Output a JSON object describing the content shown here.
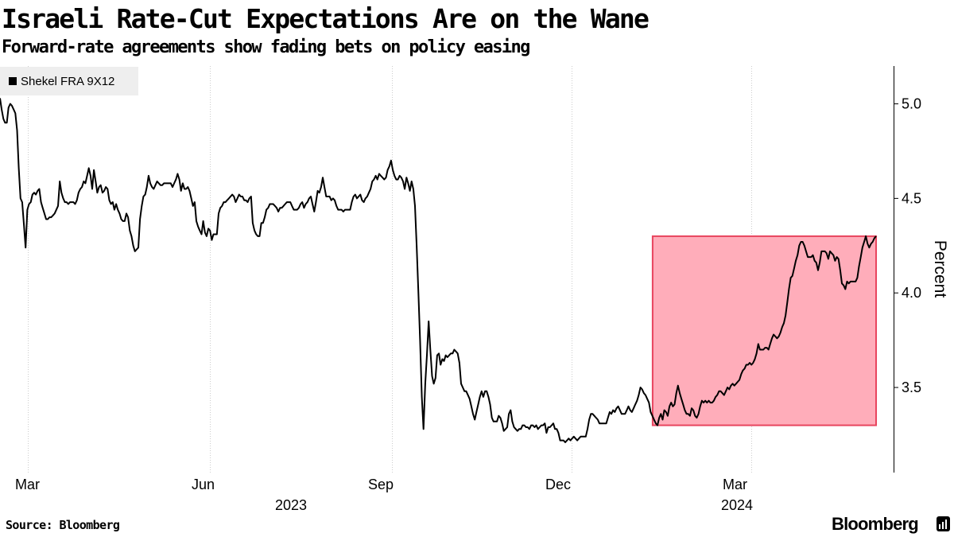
{
  "header": {
    "title": "Israeli Rate-Cut Expectations Are on the Wane",
    "subtitle": "Forward-rate agreements show fading bets on policy easing"
  },
  "footer": {
    "source": "Source: Bloomberg",
    "brand": "Bloomberg"
  },
  "colors": {
    "line": "#000000",
    "highlight_fill": "#ffadba",
    "highlight_stroke": "#e8455e",
    "grid": "#cccccc"
  },
  "chart_data": {
    "type": "line",
    "title": "Israeli Rate-Cut Expectations Are on the Wane",
    "subtitle": "Forward-rate agreements show fading bets on policy easing",
    "xlabel": "",
    "ylabel": "Percent",
    "ylim": [
      3.05,
      5.2
    ],
    "yticks": [
      "3.5",
      "4.0",
      "4.5",
      "5.0"
    ],
    "xtick_labels": [
      "Mar",
      "Jun",
      "Sep",
      "Dec",
      "Mar"
    ],
    "year_labels": [
      "2023",
      "2024"
    ],
    "legend": "top-left",
    "grid": "vertical dotted",
    "highlight": {
      "x_start": "2024-01-11",
      "x_end": "2024-05-03",
      "y_range": [
        3.3,
        4.3
      ]
    },
    "series": [
      {
        "name": "Shekel FRA 9X12",
        "x_start": "2023-02-15",
        "x_end": "2024-05-03",
        "values": [
          5.03,
          4.97,
          4.92,
          4.9,
          4.9,
          4.98,
          5.0,
          4.99,
          4.97,
          4.95,
          4.86,
          4.66,
          4.5,
          4.48,
          4.36,
          4.24,
          4.44,
          4.47,
          4.48,
          4.52,
          4.53,
          4.52,
          4.54,
          4.55,
          4.48,
          4.45,
          4.42,
          4.39,
          4.39,
          4.4,
          4.4,
          4.41,
          4.42,
          4.44,
          4.46,
          4.59,
          4.53,
          4.5,
          4.48,
          4.48,
          4.47,
          4.48,
          4.48,
          4.48,
          4.47,
          4.49,
          4.53,
          4.55,
          4.56,
          4.59,
          4.58,
          4.62,
          4.66,
          4.62,
          4.55,
          4.65,
          4.59,
          4.53,
          4.56,
          4.57,
          4.53,
          4.54,
          4.56,
          4.55,
          4.49,
          4.47,
          4.48,
          4.44,
          4.47,
          4.44,
          4.42,
          4.39,
          4.38,
          4.38,
          4.42,
          4.4,
          4.33,
          4.3,
          4.25,
          4.22,
          4.23,
          4.24,
          4.39,
          4.46,
          4.51,
          4.52,
          4.56,
          4.62,
          4.58,
          4.56,
          4.55,
          4.57,
          4.59,
          4.58,
          4.57,
          4.57,
          4.58,
          4.58,
          4.58,
          4.58,
          4.58,
          4.56,
          4.58,
          4.6,
          4.63,
          4.6,
          4.54,
          4.58,
          4.55,
          4.55,
          4.56,
          4.54,
          4.5,
          4.46,
          4.48,
          4.38,
          4.35,
          4.33,
          4.31,
          4.38,
          4.32,
          4.3,
          4.34,
          4.33,
          4.28,
          4.31,
          4.31,
          4.31,
          4.42,
          4.45,
          4.46,
          4.48,
          4.48,
          4.49,
          4.5,
          4.51,
          4.52,
          4.51,
          4.48,
          4.5,
          4.52,
          4.51,
          4.51,
          4.49,
          4.49,
          4.48,
          4.5,
          4.51,
          4.37,
          4.33,
          4.31,
          4.3,
          4.3,
          4.37,
          4.37,
          4.4,
          4.44,
          4.45,
          4.47,
          4.47,
          4.47,
          4.46,
          4.45,
          4.43,
          4.45,
          4.45,
          4.46,
          4.47,
          4.48,
          4.48,
          4.48,
          4.46,
          4.44,
          4.44,
          4.44,
          4.45,
          4.47,
          4.48,
          4.45,
          4.47,
          4.48,
          4.5,
          4.51,
          4.47,
          4.43,
          4.48,
          4.54,
          4.53,
          4.56,
          4.61,
          4.56,
          4.51,
          4.51,
          4.51,
          4.49,
          4.5,
          4.49,
          4.46,
          4.44,
          4.44,
          4.44,
          4.43,
          4.44,
          4.44,
          4.44,
          4.44,
          4.48,
          4.51,
          4.52,
          4.5,
          4.51,
          4.52,
          4.49,
          4.48,
          4.5,
          4.51,
          4.53,
          4.55,
          4.59,
          4.6,
          4.62,
          4.6,
          4.63,
          4.62,
          4.61,
          4.6,
          4.61,
          4.65,
          4.67,
          4.7,
          4.65,
          4.62,
          4.6,
          4.6,
          4.62,
          4.61,
          4.59,
          4.55,
          4.61,
          4.58,
          4.54,
          4.59,
          4.55,
          4.46,
          4.25,
          4.0,
          3.75,
          3.45,
          3.28,
          3.52,
          3.67,
          3.85,
          3.7,
          3.56,
          3.52,
          3.55,
          3.67,
          3.68,
          3.62,
          3.65,
          3.64,
          3.67,
          3.66,
          3.67,
          3.68,
          3.68,
          3.7,
          3.69,
          3.68,
          3.63,
          3.52,
          3.5,
          3.48,
          3.48,
          3.46,
          3.44,
          3.4,
          3.36,
          3.33,
          3.37,
          3.41,
          3.45,
          3.48,
          3.45,
          3.48,
          3.48,
          3.45,
          3.41,
          3.34,
          3.32,
          3.32,
          3.32,
          3.35,
          3.34,
          3.31,
          3.27,
          3.28,
          3.29,
          3.36,
          3.38,
          3.32,
          3.29,
          3.28,
          3.27,
          3.28,
          3.28,
          3.3,
          3.3,
          3.29,
          3.29,
          3.28,
          3.3,
          3.3,
          3.29,
          3.3,
          3.28,
          3.29,
          3.3,
          3.3,
          3.31,
          3.26,
          3.29,
          3.29,
          3.3,
          3.31,
          3.28,
          3.28,
          3.26,
          3.22,
          3.22,
          3.22,
          3.21,
          3.22,
          3.23,
          3.22,
          3.23,
          3.24,
          3.23,
          3.22,
          3.23,
          3.24,
          3.24,
          3.24,
          3.24,
          3.28,
          3.33,
          3.36,
          3.36,
          3.35,
          3.34,
          3.33,
          3.31,
          3.31,
          3.31,
          3.31,
          3.31,
          3.34,
          3.37,
          3.36,
          3.38,
          3.37,
          3.39,
          3.4,
          3.38,
          3.36,
          3.36,
          3.36,
          3.38,
          3.4,
          3.38,
          3.37,
          3.39,
          3.41,
          3.43,
          3.46,
          3.5,
          3.49,
          3.47,
          3.46,
          3.44,
          3.42,
          3.37,
          3.35,
          3.33,
          3.31,
          3.3,
          3.34,
          3.36,
          3.33,
          3.38,
          3.37,
          3.35,
          3.4,
          3.42,
          3.4,
          3.41,
          3.47,
          3.51,
          3.47,
          3.44,
          3.41,
          3.38,
          3.36,
          3.36,
          3.35,
          3.39,
          3.38,
          3.35,
          3.34,
          3.36,
          3.4,
          3.43,
          3.42,
          3.43,
          3.42,
          3.43,
          3.42,
          3.42,
          3.43,
          3.45,
          3.46,
          3.48,
          3.48,
          3.47,
          3.46,
          3.48,
          3.5,
          3.49,
          3.51,
          3.52,
          3.51,
          3.52,
          3.53,
          3.54,
          3.57,
          3.59,
          3.6,
          3.62,
          3.62,
          3.63,
          3.62,
          3.63,
          3.65,
          3.68,
          3.73,
          3.7,
          3.7,
          3.7,
          3.71,
          3.71,
          3.7,
          3.73,
          3.76,
          3.78,
          3.77,
          3.76,
          3.77,
          3.79,
          3.82,
          3.84,
          3.88,
          3.95,
          4.02,
          4.08,
          4.09,
          4.13,
          4.17,
          4.2,
          4.25,
          4.27,
          4.27,
          4.25,
          4.22,
          4.19,
          4.19,
          4.19,
          4.2,
          4.17,
          4.16,
          4.12,
          4.16,
          4.22,
          4.22,
          4.22,
          4.21,
          4.18,
          4.22,
          4.21,
          4.2,
          4.17,
          4.19,
          4.18,
          4.12,
          4.05,
          4.04,
          4.02,
          4.06,
          4.05,
          4.06,
          4.06,
          4.06,
          4.06,
          4.08,
          4.14,
          4.19,
          4.24,
          4.27,
          4.3,
          4.26,
          4.24,
          4.26,
          4.27,
          4.29,
          4.3
        ]
      }
    ]
  }
}
